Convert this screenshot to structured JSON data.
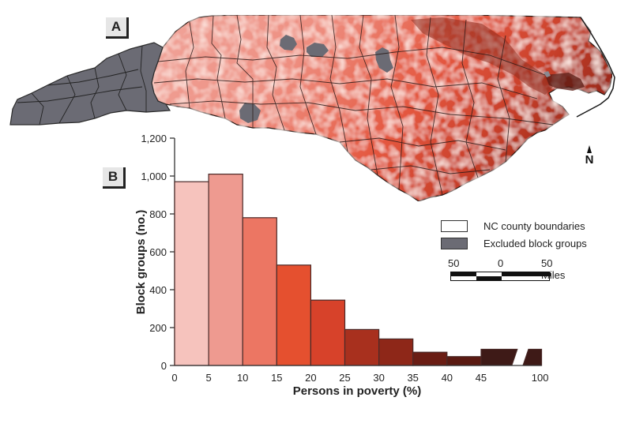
{
  "panels": {
    "a_label": "A",
    "b_label": "B"
  },
  "map": {
    "description": "North Carolina block group poverty choropleth",
    "north_label": "N",
    "colors": {
      "excluded": "#6b6b74",
      "low": "#f3b3ab",
      "mid": "#e8553b",
      "high": "#6a1a12",
      "boundary": "#2a1a18"
    }
  },
  "legend": {
    "items": [
      {
        "label": "NC county boundaries",
        "swatch": "#ffffff"
      },
      {
        "label": "Excluded block groups",
        "swatch": "#6b6b74"
      }
    ]
  },
  "scale_bar": {
    "labels": [
      "50",
      "0",
      "50 Miles"
    ]
  },
  "chart_data": {
    "type": "bar",
    "title": "",
    "xlabel": "Persons in poverty  (%)",
    "ylabel": "Block groups (no.)",
    "ylim": [
      0,
      1200
    ],
    "yticks": [
      0,
      200,
      400,
      600,
      800,
      1000,
      1200
    ],
    "ytick_labels": [
      "0",
      "200",
      "400",
      "600",
      "800",
      "1,000",
      "1,200"
    ],
    "xtick_labels": [
      "0",
      "5",
      "10",
      "15",
      "20",
      "25",
      "30",
      "35",
      "40",
      "45",
      "100"
    ],
    "bins": [
      {
        "range": "0-5",
        "value": 970,
        "color": "#f6c3bd"
      },
      {
        "range": "5-10",
        "value": 1010,
        "color": "#ee9a90"
      },
      {
        "range": "10-15",
        "value": 780,
        "color": "#ec7663"
      },
      {
        "range": "15-20",
        "value": 530,
        "color": "#e5502f"
      },
      {
        "range": "20-25",
        "value": 345,
        "color": "#d7422a"
      },
      {
        "range": "25-30",
        "value": 190,
        "color": "#a8301e"
      },
      {
        "range": "30-35",
        "value": 140,
        "color": "#8e2718"
      },
      {
        "range": "35-40",
        "value": 70,
        "color": "#6a1d14"
      },
      {
        "range": "40-45",
        "value": 47,
        "color": "#5a1a12"
      },
      {
        "range": "45-100",
        "value": 86,
        "color": "#3e1a17",
        "broken_axis": true
      }
    ]
  }
}
